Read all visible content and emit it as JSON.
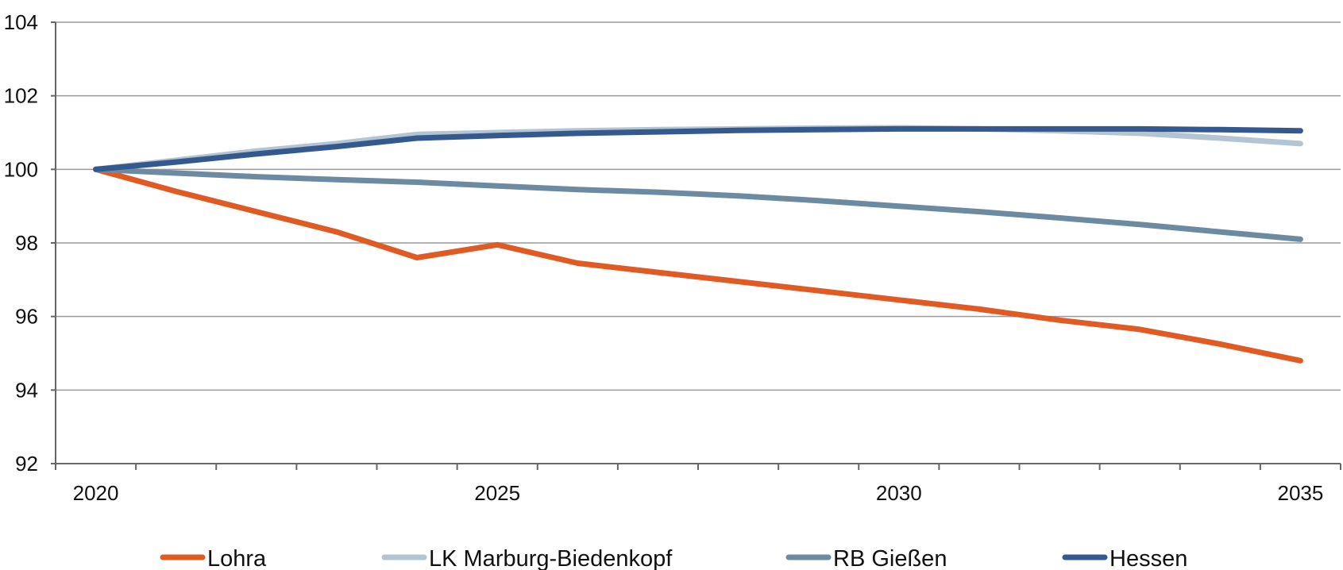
{
  "chart_data": {
    "type": "line",
    "title": "",
    "xlabel": "",
    "ylabel": "",
    "x": [
      2020,
      2021,
      2022,
      2023,
      2024,
      2025,
      2026,
      2027,
      2028,
      2029,
      2030,
      2031,
      2032,
      2033,
      2034,
      2035
    ],
    "xlim": [
      2019.5,
      2035.5
    ],
    "ylim": [
      92,
      104
    ],
    "yticks": [
      92,
      94,
      96,
      98,
      100,
      102,
      104
    ],
    "xtick_labels": [
      "2020",
      "2025",
      "2030",
      "2035"
    ],
    "grid": true,
    "legend_position": "bottom",
    "series": [
      {
        "name": "Lohra",
        "color": "#e05a24",
        "values": [
          100.0,
          99.4,
          98.85,
          98.3,
          97.6,
          97.95,
          97.45,
          97.2,
          96.95,
          96.7,
          96.45,
          96.2,
          95.9,
          95.65,
          95.25,
          94.8
        ]
      },
      {
        "name": "LK Marburg-Biedenkopf",
        "color": "#b3c4d3",
        "values": [
          100.0,
          100.25,
          100.5,
          100.7,
          100.95,
          101.0,
          101.05,
          101.08,
          101.1,
          101.12,
          101.13,
          101.1,
          101.05,
          100.98,
          100.85,
          100.7
        ]
      },
      {
        "name": "RB Gießen",
        "color": "#6d8aa3",
        "values": [
          100.0,
          99.9,
          99.8,
          99.72,
          99.65,
          99.55,
          99.45,
          99.38,
          99.28,
          99.15,
          99.0,
          98.85,
          98.68,
          98.5,
          98.3,
          98.1
        ]
      },
      {
        "name": "Hessen",
        "color": "#35598f",
        "values": [
          100.0,
          100.2,
          100.42,
          100.62,
          100.85,
          100.92,
          100.98,
          101.02,
          101.06,
          101.08,
          101.1,
          101.1,
          101.1,
          101.1,
          101.08,
          101.05
        ]
      }
    ]
  }
}
